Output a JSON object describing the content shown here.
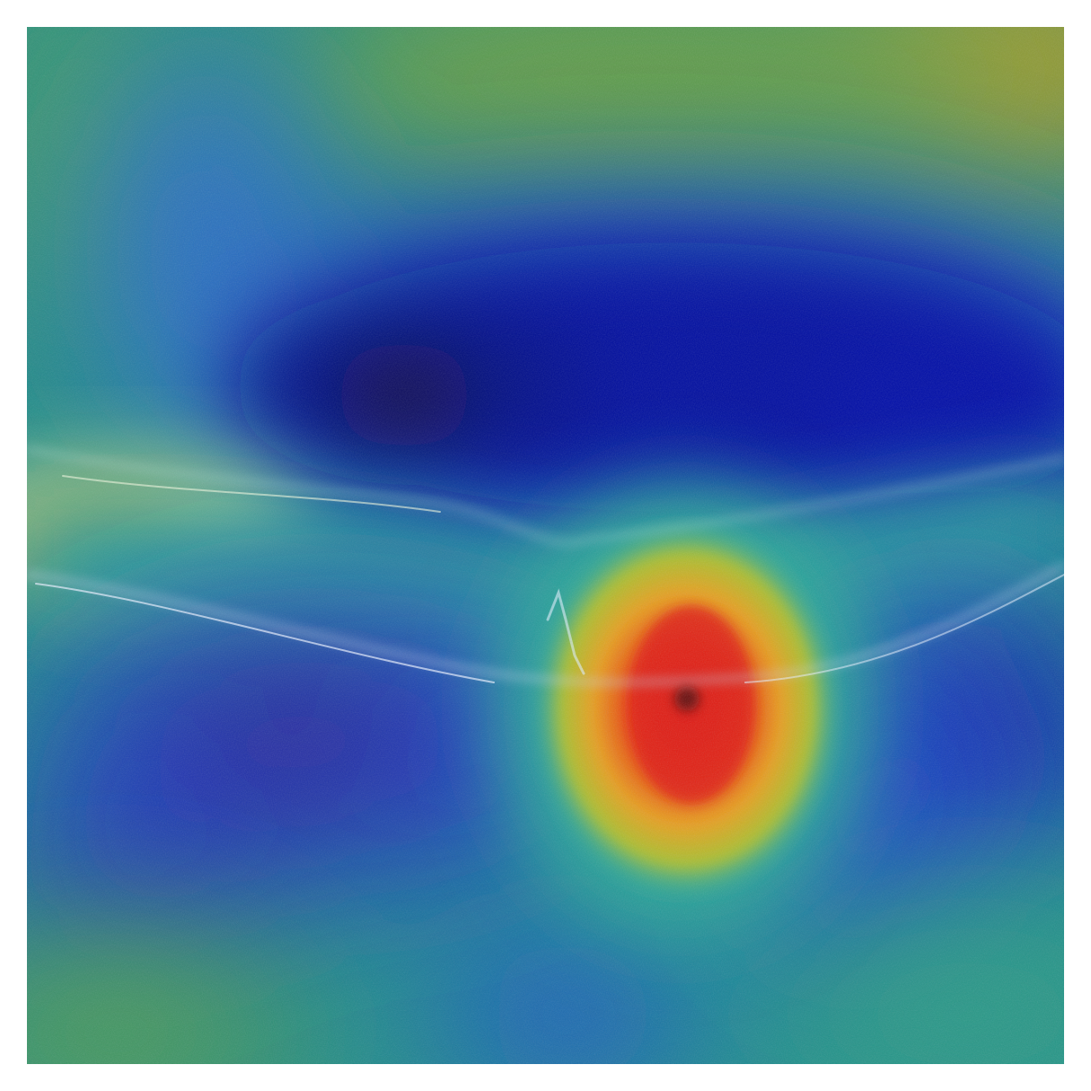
{
  "figure": {
    "kind": "oct-scan-with-attention-heatmap-overlay",
    "colormap": "jet",
    "colors": {
      "low": "#00008f",
      "low_mid": "#1f4fd6",
      "mid": "#18a6a6",
      "mid_high": "#8cb030",
      "high": "#f0a020",
      "peak": "#e02010",
      "background": "#ffffff"
    },
    "hotspot_level": 1.0,
    "overlay_blend": "semi-transparent"
  }
}
